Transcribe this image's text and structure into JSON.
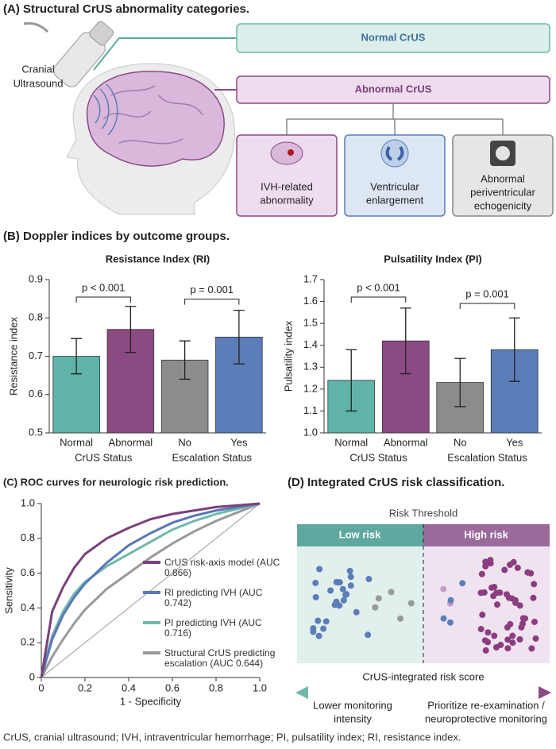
{
  "figure": {
    "panel_a": {
      "title": "(A) Structural CrUS abnormality categories.",
      "probe_label": [
        "Cranial",
        "Ultrasound"
      ],
      "normal": "Normal CrUS",
      "abnormal": "Abnormal CrUS",
      "categories": [
        [
          "IVH-related",
          "abnormality"
        ],
        [
          "Ventricular",
          "enlargement"
        ],
        [
          "Abnormal",
          "periventricular",
          "echogenicity"
        ]
      ]
    },
    "panel_b_title": "(B) Doppler indices by outcome groups.",
    "panel_d": {
      "title": "(D) Integrated CrUS risk classification.",
      "threshold": "Risk Threshold",
      "low": "Low risk",
      "high": "High risk",
      "axis": "CrUS-integrated risk score",
      "left_note": [
        "Lower monitoring",
        "intensity"
      ],
      "right_note": [
        "Prioritize re-examination /",
        "neuroprotective monitoring"
      ]
    },
    "footnote": "CrUS, cranial ultrasound; IVH, intraventricular hemorrhage; PI, pulsatility index; RI, resistance index."
  },
  "chart_data": [
    {
      "type": "bar",
      "title": "Resistance Index (RI)",
      "y_label": "Resistance index",
      "categories": [
        "Normal",
        "Abnormal",
        "No",
        "Yes"
      ],
      "groups": [
        "CrUS Status",
        "Escalation Status"
      ],
      "values": [
        0.7,
        0.77,
        0.69,
        0.75
      ],
      "errors": [
        0.046,
        0.06,
        0.05,
        0.07
      ],
      "colors": [
        "#5fb3a9",
        "#8b4a83",
        "#8c8c8c",
        "#5b7db8"
      ],
      "annotations": [
        "p < 0.001",
        "p = 0.001"
      ],
      "ylim": [
        0.5,
        0.9
      ],
      "yticks": [
        0.5,
        0.6,
        0.7,
        0.8,
        0.9
      ]
    },
    {
      "type": "bar",
      "title": "Pulsatility Index (PI)",
      "y_label": "Pulsatility index",
      "categories": [
        "Normal",
        "Abnormal",
        "No",
        "Yes"
      ],
      "groups": [
        "CrUS Status",
        "Escalation Status"
      ],
      "values": [
        1.24,
        1.42,
        1.23,
        1.38
      ],
      "errors": [
        0.14,
        0.15,
        0.11,
        0.145
      ],
      "colors": [
        "#5fb3a9",
        "#8b4a83",
        "#8c8c8c",
        "#5b7db8"
      ],
      "annotations": [
        "p < 0.001",
        "p = 0.001"
      ],
      "ylim": [
        1.0,
        1.7
      ],
      "yticks": [
        {
          "value": 1.0,
          "label": "1.0"
        },
        1.1,
        1.2,
        1.3,
        1.4,
        1.5,
        1.6,
        1.7
      ]
    },
    {
      "type": "line",
      "title": "(C) ROC curves for neurologic risk prediction.",
      "x_label": "1 - Specificity",
      "y_label": "Sensitivity",
      "x": [
        0,
        0.05,
        0.1,
        0.15,
        0.2,
        0.3,
        0.4,
        0.5,
        0.6,
        0.7,
        0.8,
        0.9,
        1.0
      ],
      "series": [
        {
          "name": "CrUS risk-axis model (AUC 0.866)",
          "color": "#7b3f7b",
          "values": [
            0,
            0.38,
            0.52,
            0.63,
            0.71,
            0.8,
            0.86,
            0.91,
            0.94,
            0.96,
            0.98,
            0.99,
            1.0
          ]
        },
        {
          "name": "RI predicting IVH (AUC 0.742)",
          "color": "#5a78b5",
          "values": [
            0,
            0.22,
            0.36,
            0.46,
            0.54,
            0.66,
            0.76,
            0.83,
            0.89,
            0.93,
            0.96,
            0.98,
            1.0
          ]
        },
        {
          "name": "PI predicting IVH (AUC 0.716)",
          "color": "#6fb8aa",
          "values": [
            0,
            0.24,
            0.38,
            0.48,
            0.55,
            0.64,
            0.71,
            0.78,
            0.85,
            0.9,
            0.94,
            0.97,
            1.0
          ]
        },
        {
          "name": "Structural CrUS predicting escalation (AUC 0.644)",
          "color": "#999999",
          "values": [
            0,
            0.12,
            0.22,
            0.31,
            0.39,
            0.51,
            0.6,
            0.69,
            0.77,
            0.84,
            0.9,
            0.95,
            1.0
          ]
        }
      ],
      "xlim": [
        0,
        1
      ],
      "ylim": [
        0,
        1
      ],
      "xticks": [
        0,
        0.2,
        0.4,
        0.6,
        0.8,
        {
          "value": 1.0,
          "label": "1.0"
        }
      ],
      "yticks": [
        0,
        0.2,
        0.4,
        0.6,
        0.8,
        {
          "value": 1.0,
          "label": "1.0"
        }
      ]
    }
  ]
}
